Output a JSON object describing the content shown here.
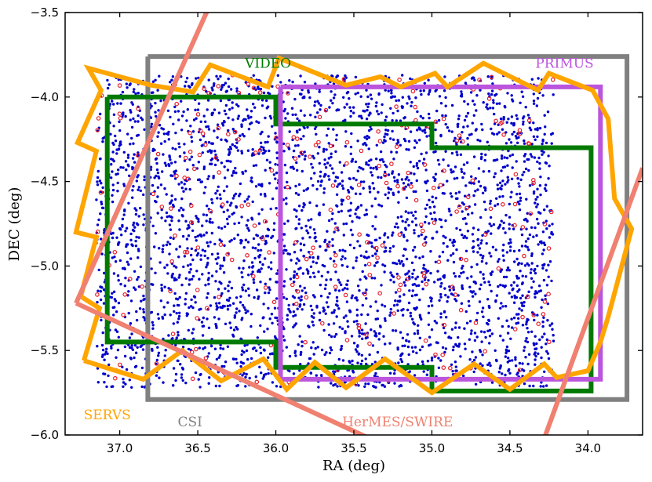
{
  "chart_data": {
    "type": "scatter",
    "xlabel": "RA (deg)",
    "ylabel": "DEC (deg)",
    "xlim": [
      37.35,
      33.65
    ],
    "ylim": [
      -6.0,
      -3.5
    ],
    "x_ticks": [
      37.0,
      36.5,
      36.0,
      35.5,
      35.0,
      34.5,
      34.0
    ],
    "x_tick_labels": [
      "37.0",
      "36.5",
      "36.0",
      "35.5",
      "35.0",
      "34.5",
      "34.0"
    ],
    "y_ticks": [
      -3.5,
      -4.0,
      -4.5,
      -5.0,
      -5.5,
      -6.0
    ],
    "y_tick_labels": [
      "−3.5",
      "−4.0",
      "−4.5",
      "−5.0",
      "−5.5",
      "−6.0"
    ],
    "grid": false,
    "scatter_series": [
      {
        "id": "blue",
        "color": "#0000cc",
        "marker": "filled-dot",
        "count": 3600,
        "ra_range": [
          37.15,
          34.22
        ],
        "dec_range": [
          -5.72,
          -3.87
        ]
      },
      {
        "id": "red",
        "color": "#e8202a",
        "marker": "open-circle",
        "count": 260,
        "ra_range": [
          37.15,
          34.22
        ],
        "dec_range": [
          -5.72,
          -3.87
        ]
      }
    ],
    "regions": [
      {
        "name": "CSI",
        "color": "#808080",
        "label_ra": 36.55,
        "label_dec": -5.92,
        "polygon": [
          [
            36.82,
            -3.76
          ],
          [
            33.75,
            -3.76
          ],
          [
            33.75,
            -5.79
          ],
          [
            36.82,
            -5.79
          ],
          [
            36.82,
            -3.76
          ]
        ]
      },
      {
        "name": "VIDEO",
        "color": "#007a00",
        "label_ra": 36.05,
        "label_dec": -3.8,
        "polygon": [
          [
            37.08,
            -4.0
          ],
          [
            36.0,
            -4.0
          ],
          [
            36.0,
            -4.16
          ],
          [
            35.0,
            -4.16
          ],
          [
            35.0,
            -4.3
          ],
          [
            33.98,
            -4.3
          ],
          [
            33.98,
            -5.74
          ],
          [
            35.0,
            -5.74
          ],
          [
            35.0,
            -5.6
          ],
          [
            36.0,
            -5.6
          ],
          [
            36.0,
            -5.45
          ],
          [
            37.08,
            -5.45
          ],
          [
            37.08,
            -4.0
          ]
        ]
      },
      {
        "name": "PRIMUS",
        "color": "#bb55dd",
        "label_ra": 34.15,
        "label_dec": -3.8,
        "polygon": [
          [
            35.97,
            -3.94
          ],
          [
            33.92,
            -3.94
          ],
          [
            33.92,
            -5.67
          ],
          [
            35.97,
            -5.67
          ],
          [
            35.97,
            -3.94
          ]
        ]
      },
      {
        "name": "SERVS",
        "color": "#ffa500",
        "label_ra": 37.08,
        "label_dec": -5.88,
        "polygon": [
          [
            37.23,
            -5.56
          ],
          [
            37.13,
            -5.25
          ],
          [
            37.25,
            -5.18
          ],
          [
            37.15,
            -4.83
          ],
          [
            37.28,
            -4.8
          ],
          [
            37.15,
            -4.32
          ],
          [
            37.27,
            -4.27
          ],
          [
            37.12,
            -3.96
          ],
          [
            37.2,
            -3.83
          ],
          [
            36.8,
            -3.93
          ],
          [
            36.53,
            -3.97
          ],
          [
            36.42,
            -3.81
          ],
          [
            36.05,
            -3.94
          ],
          [
            35.98,
            -3.77
          ],
          [
            35.55,
            -3.93
          ],
          [
            35.33,
            -3.88
          ],
          [
            35.2,
            -3.94
          ],
          [
            34.98,
            -3.86
          ],
          [
            34.9,
            -3.94
          ],
          [
            34.67,
            -3.8
          ],
          [
            34.32,
            -3.96
          ],
          [
            34.25,
            -3.86
          ],
          [
            33.97,
            -3.96
          ],
          [
            33.87,
            -4.13
          ],
          [
            33.83,
            -4.6
          ],
          [
            33.72,
            -4.78
          ],
          [
            33.87,
            -5.3
          ],
          [
            33.92,
            -5.45
          ],
          [
            34.0,
            -5.62
          ],
          [
            34.2,
            -5.66
          ],
          [
            34.28,
            -5.58
          ],
          [
            34.5,
            -5.73
          ],
          [
            34.73,
            -5.58
          ],
          [
            35.0,
            -5.75
          ],
          [
            35.3,
            -5.55
          ],
          [
            35.55,
            -5.72
          ],
          [
            35.75,
            -5.57
          ],
          [
            35.93,
            -5.73
          ],
          [
            36.08,
            -5.55
          ],
          [
            36.35,
            -5.68
          ],
          [
            36.6,
            -5.5
          ],
          [
            36.85,
            -5.67
          ],
          [
            37.23,
            -5.56
          ]
        ]
      },
      {
        "name": "HerMES/SWIRE",
        "color": "#f08070",
        "label_ra": 35.22,
        "label_dec": -5.92,
        "lines": [
          [
            [
              37.28,
              -5.22
            ],
            [
              35.4,
              -6.02
            ]
          ],
          [
            [
              37.28,
              -5.22
            ],
            [
              36.42,
              -3.45
            ]
          ],
          [
            [
              33.65,
              -4.42
            ],
            [
              34.28,
              -6.02
            ]
          ]
        ]
      }
    ]
  }
}
